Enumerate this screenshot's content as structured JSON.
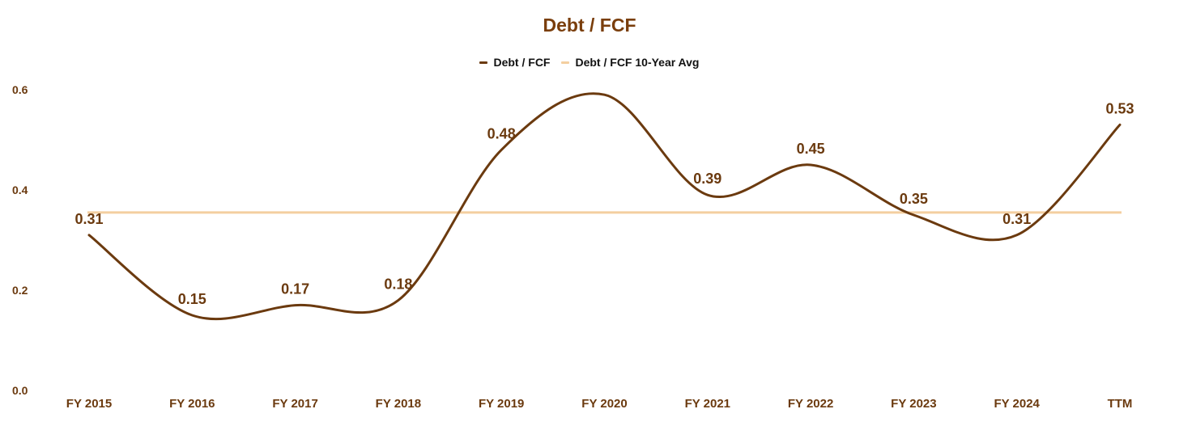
{
  "chart_data": {
    "type": "line",
    "title": "Debt / FCF",
    "categories": [
      "FY 2015",
      "FY 2016",
      "FY 2017",
      "FY 2018",
      "FY 2019",
      "FY 2020",
      "FY 2021",
      "FY 2022",
      "FY 2023",
      "FY 2024",
      "TTM"
    ],
    "series": [
      {
        "name": "Debt / FCF",
        "color": "#6b3a0f",
        "values": [
          0.31,
          0.15,
          0.17,
          0.18,
          0.48,
          0.59,
          0.39,
          0.45,
          0.35,
          0.31,
          0.53
        ],
        "data_labels": [
          "0.31",
          "0.15",
          "0.17",
          "0.18",
          "0.48",
          "",
          "0.39",
          "0.45",
          "0.35",
          "0.31",
          "0.53"
        ]
      },
      {
        "name": "Debt / FCF 10-Year Avg",
        "color": "#f4cfa0",
        "values": [
          0.355,
          0.355,
          0.355,
          0.355,
          0.355,
          0.355,
          0.355,
          0.355,
          0.355,
          0.355,
          0.355
        ]
      }
    ],
    "y_ticks": [
      "0.0",
      "0.2",
      "0.4",
      "0.6"
    ],
    "ylim": [
      0,
      0.6
    ],
    "legend_position": "top-center",
    "grid": false,
    "xlabel": "",
    "ylabel": ""
  },
  "colors": {
    "title": "#7a3e0c",
    "axis_text": "#6b3a0f",
    "primary_line": "#6b3a0f",
    "avg_line": "#f4cfa0"
  }
}
